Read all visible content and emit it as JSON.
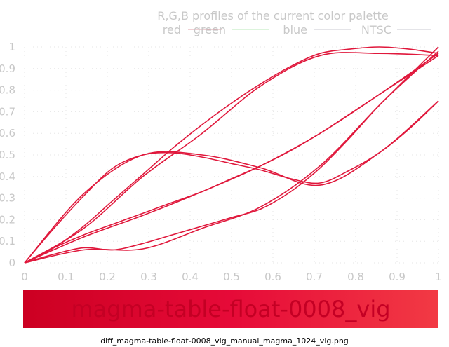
{
  "chart_data": {
    "type": "line",
    "title": "R,G,B profiles of the current color palette",
    "legend": {
      "placement": "top-right",
      "entries": [
        "red",
        "green",
        "blue",
        "NTSC"
      ],
      "entry_colors": [
        "#e0a0a8",
        "#b8e8b8",
        "#c8c8d0",
        "#c8c8d0"
      ]
    },
    "xlim": [
      0,
      1
    ],
    "ylim": [
      0,
      1
    ],
    "xticks": [
      "0",
      "0.1",
      "0.2",
      "0.3",
      "0.4",
      "0.5",
      "0.6",
      "0.7",
      "0.8",
      "0.9",
      "1"
    ],
    "yticks": [
      "0",
      "0.1",
      "0.2",
      "0.3",
      "0.4",
      "0.5",
      "0.6",
      "0.7",
      "0.8",
      "0.9",
      "1"
    ],
    "grid": true,
    "line_color": "#e0183c",
    "series": [
      {
        "x": [
          0,
          0.143,
          0.286,
          0.429,
          0.571,
          0.714,
          0.857,
          1.0
        ],
        "values": [
          0.0,
          0.32,
          0.5,
          0.5,
          0.44,
          0.36,
          0.51,
          0.75
        ]
      },
      {
        "x": [
          0,
          0.143,
          0.286,
          0.429,
          0.571,
          0.714,
          0.857,
          1.0
        ],
        "values": [
          0.0,
          0.16,
          0.4,
          0.6,
          0.82,
          0.96,
          0.97,
          0.96
        ]
      },
      {
        "x": [
          0,
          0.143,
          0.286,
          0.429,
          0.571,
          0.714,
          0.857,
          1.0
        ],
        "values": [
          0.0,
          0.12,
          0.22,
          0.33,
          0.45,
          0.6,
          0.78,
          0.97
        ]
      },
      {
        "x": [
          0,
          0.143,
          0.286,
          0.429,
          0.571,
          0.714,
          0.857,
          1.0
        ],
        "values": [
          0.0,
          0.06,
          0.065,
          0.16,
          0.26,
          0.45,
          0.73,
          1.0
        ]
      },
      {
        "x": [
          0,
          0.071,
          0.143,
          0.214,
          0.286,
          0.357,
          0.429,
          0.5,
          0.571,
          0.643,
          0.714,
          0.786,
          0.857,
          0.929,
          1.0
        ],
        "values": [
          0.0,
          0.16,
          0.31,
          0.44,
          0.5,
          0.51,
          0.49,
          0.46,
          0.43,
          0.39,
          0.37,
          0.43,
          0.51,
          0.62,
          0.75
        ]
      },
      {
        "x": [
          0,
          0.071,
          0.143,
          0.214,
          0.286,
          0.357,
          0.429,
          0.5,
          0.571,
          0.643,
          0.714,
          0.786,
          0.857,
          0.929,
          1.0
        ],
        "values": [
          0.0,
          0.07,
          0.17,
          0.29,
          0.41,
          0.53,
          0.64,
          0.74,
          0.83,
          0.91,
          0.97,
          0.99,
          1.0,
          0.99,
          0.97
        ]
      },
      {
        "x": [
          0,
          0.071,
          0.143,
          0.214,
          0.286,
          0.357,
          0.429,
          0.5,
          0.571,
          0.643,
          0.714,
          0.786,
          0.857,
          0.929,
          1.0
        ],
        "values": [
          0.0,
          0.07,
          0.13,
          0.18,
          0.23,
          0.28,
          0.33,
          0.39,
          0.45,
          0.52,
          0.6,
          0.69,
          0.78,
          0.87,
          0.96
        ]
      },
      {
        "x": [
          0,
          0.071,
          0.143,
          0.214,
          0.286,
          0.357,
          0.429,
          0.5,
          0.571,
          0.643,
          0.714,
          0.786,
          0.857,
          0.929,
          1.0
        ],
        "values": [
          0.0,
          0.04,
          0.07,
          0.06,
          0.09,
          0.13,
          0.17,
          0.21,
          0.25,
          0.33,
          0.44,
          0.58,
          0.73,
          0.86,
          0.98
        ]
      }
    ],
    "colorbar": {
      "colors": [
        "#cc0022",
        "#e60a38",
        "#f23a44"
      ],
      "label": "magma-table-float-0008_vig",
      "label_color": "#c40024"
    }
  },
  "footer": {
    "filename": "diff_magma-table-float-0008_vig_manual_magma_1024_vig.png"
  }
}
